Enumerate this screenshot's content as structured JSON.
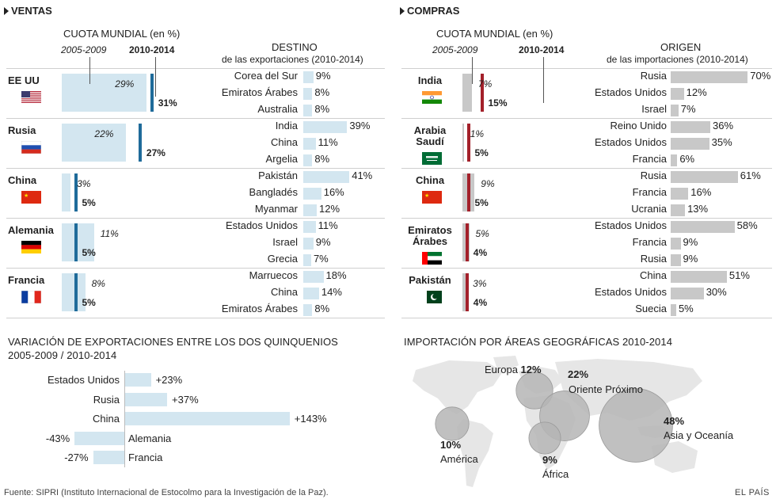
{
  "ventas": {
    "title": "VENTAS",
    "cuota_label": "CUOTA MUNDIAL (en %)",
    "period1": "2005-2009",
    "period2": "2010-2014",
    "dest_title": "DESTINO",
    "dest_sub": "de las exportaciones (2010-2014)",
    "countries": [
      {
        "name": "EE UU",
        "share_2005_2009": 29,
        "share_2010_2014": 31,
        "label_old": "29%",
        "label_new": "31%",
        "destinations": [
          {
            "name": "Corea del Sur",
            "value": 9,
            "label": "9%"
          },
          {
            "name": "Emiratos Árabes",
            "value": 8,
            "label": "8%"
          },
          {
            "name": "Australia",
            "value": 8,
            "label": "8%"
          }
        ]
      },
      {
        "name": "Rusia",
        "share_2005_2009": 22,
        "share_2010_2014": 27,
        "label_old": "22%",
        "label_new": "27%",
        "destinations": [
          {
            "name": "India",
            "value": 39,
            "label": "39%"
          },
          {
            "name": "China",
            "value": 11,
            "label": "11%"
          },
          {
            "name": "Argelia",
            "value": 8,
            "label": "8%"
          }
        ]
      },
      {
        "name": "China",
        "share_2005_2009": 3,
        "share_2010_2014": 5,
        "label_old": "3%",
        "label_new": "5%",
        "destinations": [
          {
            "name": "Pakistán",
            "value": 41,
            "label": "41%"
          },
          {
            "name": "Bangladés",
            "value": 16,
            "label": "16%"
          },
          {
            "name": "Myanmar",
            "value": 12,
            "label": "12%"
          }
        ]
      },
      {
        "name": "Alemania",
        "share_2005_2009": 11,
        "share_2010_2014": 5,
        "label_old": "11%",
        "label_new": "5%",
        "destinations": [
          {
            "name": "Estados Unidos",
            "value": 11,
            "label": "11%"
          },
          {
            "name": "Israel",
            "value": 9,
            "label": "9%"
          },
          {
            "name": "Grecia",
            "value": 7,
            "label": "7%"
          }
        ]
      },
      {
        "name": "Francia",
        "share_2005_2009": 8,
        "share_2010_2014": 5,
        "label_old": "8%",
        "label_new": "5%",
        "destinations": [
          {
            "name": "Marruecos",
            "value": 18,
            "label": "18%"
          },
          {
            "name": "China",
            "value": 14,
            "label": "14%"
          },
          {
            "name": "Emiratos Árabes",
            "value": 8,
            "label": "8%"
          }
        ]
      }
    ]
  },
  "compras": {
    "title": "COMPRAS",
    "cuota_label": "CUOTA MUNDIAL (en %)",
    "period1": "2005-2009",
    "period2": "2010-2014",
    "orig_title": "ORIGEN",
    "orig_sub": "de las importaciones (2010-2014)",
    "countries": [
      {
        "name_lines": [
          "India"
        ],
        "share_2005_2009": 7,
        "share_2010_2014": 15,
        "label_old": "7%",
        "label_new": "15%",
        "origins": [
          {
            "name": "Rusia",
            "value": 70,
            "label": "70%"
          },
          {
            "name": "Estados Unidos",
            "value": 12,
            "label": "12%"
          },
          {
            "name": "Israel",
            "value": 7,
            "label": "7%"
          }
        ]
      },
      {
        "name_lines": [
          "Arabia",
          "Saudí"
        ],
        "share_2005_2009": 1,
        "share_2010_2014": 5,
        "label_old": "1%",
        "label_new": "5%",
        "origins": [
          {
            "name": "Reino Unido",
            "value": 36,
            "label": "36%"
          },
          {
            "name": "Estados Unidos",
            "value": 35,
            "label": "35%"
          },
          {
            "name": "Francia",
            "value": 6,
            "label": "6%"
          }
        ]
      },
      {
        "name_lines": [
          "China"
        ],
        "share_2005_2009": 9,
        "share_2010_2014": 5,
        "label_old": "9%",
        "label_new": "5%",
        "origins": [
          {
            "name": "Rusia",
            "value": 61,
            "label": "61%"
          },
          {
            "name": "Francia",
            "value": 16,
            "label": "16%"
          },
          {
            "name": "Ucrania",
            "value": 13,
            "label": "13%"
          }
        ]
      },
      {
        "name_lines": [
          "Emiratos",
          "Árabes"
        ],
        "share_2005_2009": 5,
        "share_2010_2014": 4,
        "label_old": "5%",
        "label_new": "4%",
        "origins": [
          {
            "name": "Estados Unidos",
            "value": 58,
            "label": "58%"
          },
          {
            "name": "Francia",
            "value": 9,
            "label": "9%"
          },
          {
            "name": "Rusia",
            "value": 9,
            "label": "9%"
          }
        ]
      },
      {
        "name_lines": [
          "Pakistán"
        ],
        "share_2005_2009": 3,
        "share_2010_2014": 4,
        "label_old": "3%",
        "label_new": "4%",
        "origins": [
          {
            "name": "China",
            "value": 51,
            "label": "51%"
          },
          {
            "name": "Estados Unidos",
            "value": 30,
            "label": "30%"
          },
          {
            "name": "Suecia",
            "value": 5,
            "label": "5%"
          }
        ]
      }
    ]
  },
  "variacion": {
    "title_line1": "VARIACIÓN DE EXPORTACIONES ENTRE LOS DOS QUINQUENIOS",
    "title_line2": "2005-2009 / 2010-2014",
    "items": [
      {
        "name": "Estados Unidos",
        "value": 23,
        "label": "+23%"
      },
      {
        "name": "Rusia",
        "value": 37,
        "label": "+37%"
      },
      {
        "name": "China",
        "value": 143,
        "label": "+143%"
      },
      {
        "name": "Alemania",
        "value": -43,
        "label": "-43%"
      },
      {
        "name": "Francia",
        "value": -27,
        "label": "-27%"
      }
    ]
  },
  "importacion": {
    "title": "IMPORTACIÓN POR ÁREAS GEOGRÁFICAS 2010-2014",
    "areas": [
      {
        "name": "Europa",
        "value": 12,
        "label": "12%"
      },
      {
        "name": "Oriente Próximo",
        "value": 22,
        "label": "22%"
      },
      {
        "name": "Asia y Oceanía",
        "value": 48,
        "label": "48%"
      },
      {
        "name": "América",
        "value": 10,
        "label": "10%"
      },
      {
        "name": "África",
        "value": 9,
        "label": "9%"
      }
    ]
  },
  "footer": {
    "source": "Fuente: SIPRI (Instituto Internacional de Estocolmo para la Investigación de la Paz).",
    "brand": "EL PAÍS"
  },
  "colors": {
    "export_bar": "#d3e6f0",
    "export_marker": "#1f6b9a",
    "import_bar": "#c8c8c8",
    "import_marker": "#a3202a",
    "bubble": "#b5b5b5",
    "map": "#e6e6e6"
  },
  "chart_data": [
    {
      "type": "bar",
      "title": "VENTAS",
      "subtitle": "CUOTA MUNDIAL (en %)",
      "categories": [
        "EE UU",
        "Rusia",
        "China",
        "Alemania",
        "Francia"
      ],
      "series": [
        {
          "name": "2005-2009",
          "values": [
            29,
            22,
            3,
            11,
            8
          ]
        },
        {
          "name": "2010-2014",
          "values": [
            31,
            27,
            5,
            5,
            5
          ]
        }
      ]
    },
    {
      "type": "bar",
      "title": "COMPRAS",
      "subtitle": "CUOTA MUNDIAL (en %)",
      "categories": [
        "India",
        "Arabia Saudí",
        "China",
        "Emiratos Árabes",
        "Pakistán"
      ],
      "series": [
        {
          "name": "2005-2009",
          "values": [
            7,
            1,
            9,
            5,
            3
          ]
        },
        {
          "name": "2010-2014",
          "values": [
            15,
            5,
            5,
            4,
            4
          ]
        }
      ]
    },
    {
      "type": "bar",
      "title": "VARIACIÓN DE EXPORTACIONES ENTRE LOS DOS QUINQUENIOS",
      "categories": [
        "Estados Unidos",
        "Rusia",
        "China",
        "Alemania",
        "Francia"
      ],
      "values": [
        23,
        37,
        143,
        -43,
        -27
      ]
    },
    {
      "type": "scatter",
      "title": "IMPORTACIÓN POR ÁREAS GEOGRÁFICAS 2010-2014",
      "categories": [
        "Europa",
        "Oriente Próximo",
        "Asia y Oceanía",
        "América",
        "África"
      ],
      "values": [
        12,
        22,
        48,
        10,
        9
      ]
    }
  ]
}
